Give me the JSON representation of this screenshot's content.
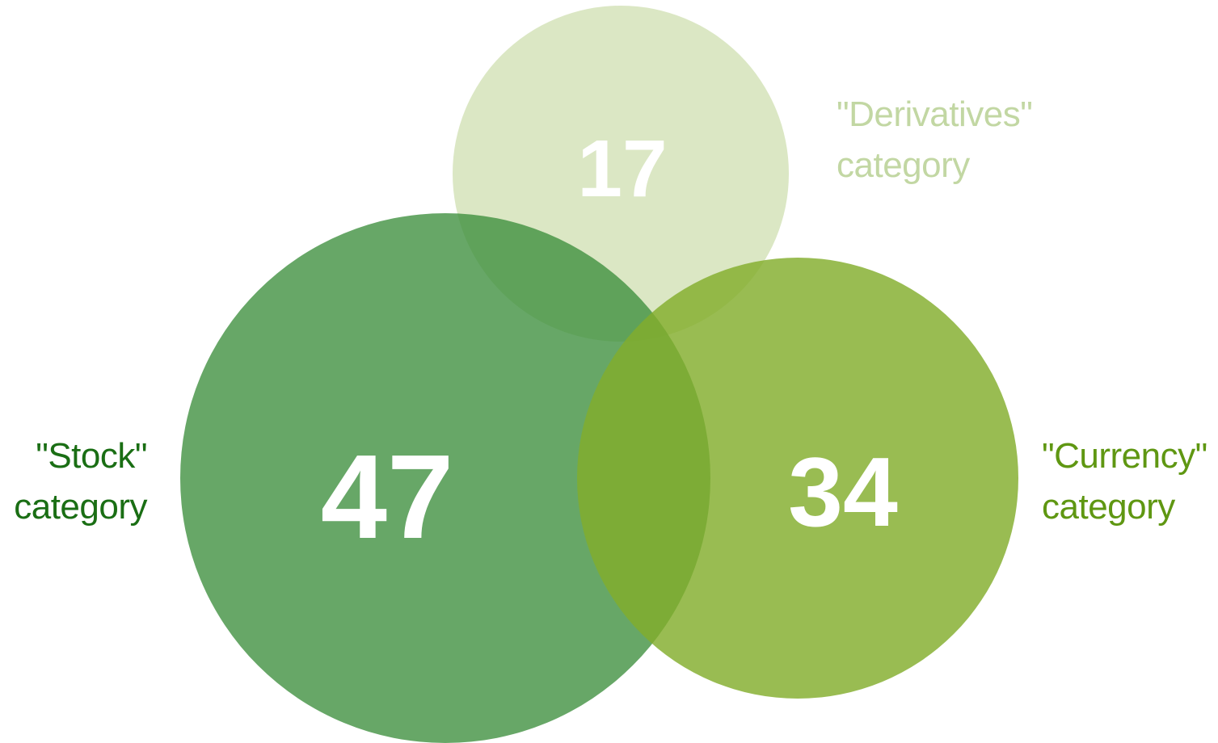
{
  "sets": {
    "stock": {
      "count": "47",
      "label_line1": "\"Stock\"",
      "label_line2": "category",
      "fill_color": "#3c8e3c",
      "label_color": "#1a6e14"
    },
    "currency": {
      "count": "34",
      "label_line1": "\"Currency\"",
      "label_line2": "category",
      "fill_color": "#82ad2c",
      "label_color": "#5f9712"
    },
    "derivatives": {
      "count": "17",
      "label_line1": "\"Derivatives\"",
      "label_line2": "category",
      "fill_color": "#cadca8",
      "label_color": "#c2d7a3"
    }
  },
  "count_color": "#ffffff"
}
